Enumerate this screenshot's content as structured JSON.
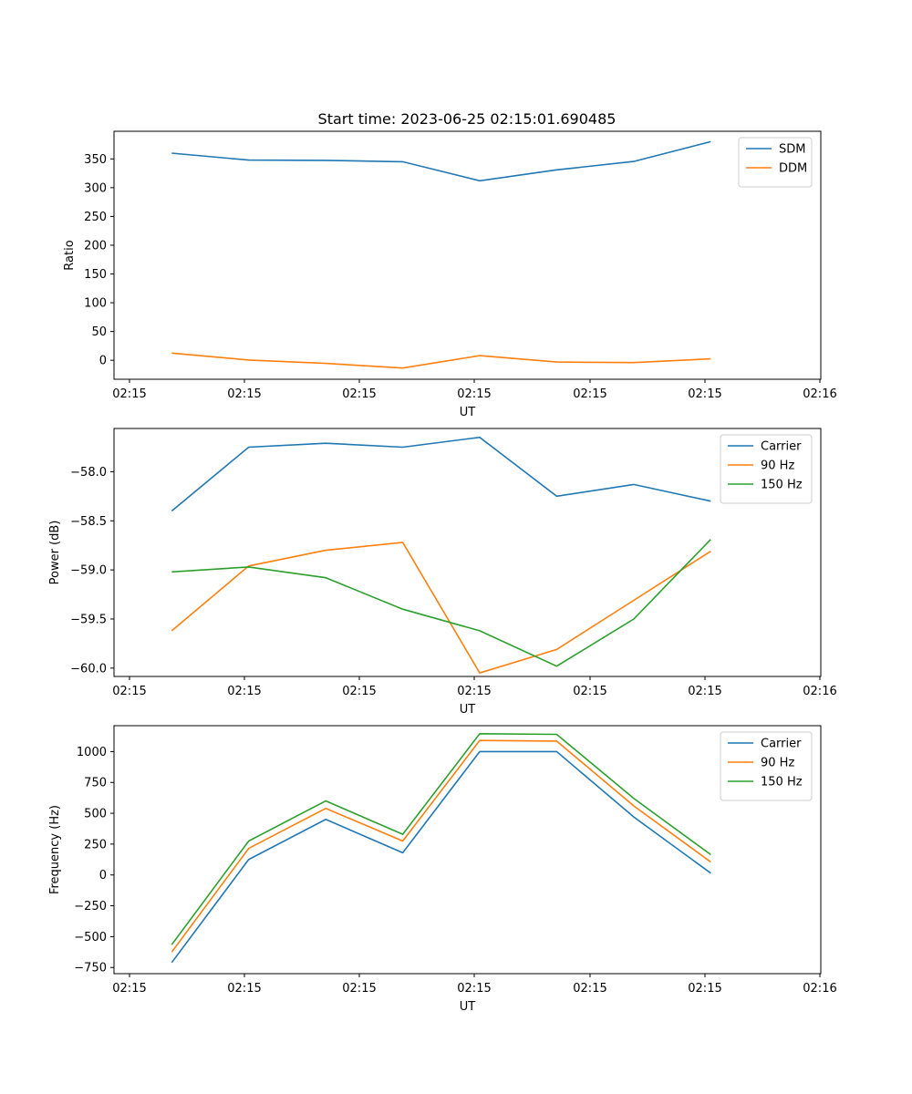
{
  "figure": {
    "title": "Start time: 2023-06-25 02:15:01.690485"
  },
  "colors": {
    "blue": "#1f77b4",
    "orange": "#ff7f0e",
    "green": "#2ca02c"
  },
  "chart_data": [
    {
      "type": "line",
      "title": "Start time: 2023-06-25 02:15:01.690485",
      "xlabel": "UT",
      "ylabel": "Ratio",
      "x": [
        "02:15:01.690485",
        "02:15:02.690485",
        "02:15:03.690485",
        "02:15:04.690485",
        "02:15:05.690485",
        "02:15:06.690485",
        "02:15:07.690485",
        "02:15:08.690485"
      ],
      "x_tick_labels": [
        "02:15",
        "02:15",
        "02:15",
        "02:15",
        "02:15",
        "02:15",
        "02:16"
      ],
      "ylim": [
        -33,
        398
      ],
      "y_ticks": [
        0,
        50,
        100,
        150,
        200,
        250,
        300,
        350
      ],
      "legend": "top-right",
      "grid": false,
      "series": [
        {
          "name": "SDM",
          "color": "#1f77b4",
          "values": [
            360,
            348,
            347.5,
            345,
            312,
            331,
            345.5,
            380
          ]
        },
        {
          "name": "DDM",
          "color": "#ff7f0e",
          "values": [
            12.5,
            0.5,
            -5.5,
            -13.5,
            8,
            -3,
            -4,
            2.5
          ]
        }
      ]
    },
    {
      "type": "line",
      "title": "",
      "xlabel": "UT",
      "ylabel": "Power (dB)",
      "x": [
        "02:15:01.690485",
        "02:15:02.690485",
        "02:15:03.690485",
        "02:15:04.690485",
        "02:15:05.690485",
        "02:15:06.690485",
        "02:15:07.690485",
        "02:15:08.690485"
      ],
      "x_tick_labels": [
        "02:15",
        "02:15",
        "02:15",
        "02:15",
        "02:15",
        "02:15",
        "02:16"
      ],
      "ylim": [
        -60.085,
        -57.56
      ],
      "y_ticks": [
        -58.0,
        -58.5,
        -59.0,
        -59.5,
        -60.0
      ],
      "y_tick_labels": [
        "−58.0",
        "−58.5",
        "−59.0",
        "−59.5",
        "−60.0"
      ],
      "legend": "top-right",
      "grid": false,
      "series": [
        {
          "name": "Carrier",
          "color": "#1f77b4",
          "values": [
            -58.4,
            -57.75,
            -57.71,
            -57.75,
            -57.65,
            -58.25,
            -58.13,
            -58.3
          ]
        },
        {
          "name": "90 Hz",
          "color": "#ff7f0e",
          "values": [
            -59.62,
            -58.96,
            -58.8,
            -58.72,
            -60.05,
            -59.81,
            -59.31,
            -58.81
          ]
        },
        {
          "name": "150 Hz",
          "color": "#2ca02c",
          "values": [
            -59.02,
            -58.97,
            -59.08,
            -59.4,
            -59.62,
            -59.98,
            -59.5,
            -58.69
          ]
        }
      ]
    },
    {
      "type": "line",
      "title": "",
      "xlabel": "UT",
      "ylabel": "Frequency (Hz)",
      "x": [
        "02:15:01.690485",
        "02:15:02.690485",
        "02:15:03.690485",
        "02:15:04.690485",
        "02:15:05.690485",
        "02:15:06.690485",
        "02:15:07.690485",
        "02:15:08.690485"
      ],
      "x_tick_labels": [
        "02:15",
        "02:15",
        "02:15",
        "02:15",
        "02:15",
        "02:15",
        "02:16"
      ],
      "ylim": [
        -800,
        1210
      ],
      "y_ticks": [
        -750,
        -500,
        -250,
        0,
        250,
        500,
        750,
        1000
      ],
      "y_tick_labels": [
        "−750",
        "−500",
        "−250",
        "0",
        "250",
        "500",
        "750",
        "1000"
      ],
      "legend": "top-right",
      "grid": false,
      "series": [
        {
          "name": "Carrier",
          "color": "#1f77b4",
          "values": [
            -710,
            125,
            450,
            180,
            1000,
            1000,
            470,
            15
          ]
        },
        {
          "name": "90 Hz",
          "color": "#ff7f0e",
          "values": [
            -625,
            215,
            540,
            275,
            1090,
            1085,
            560,
            105
          ]
        },
        {
          "name": "150 Hz",
          "color": "#2ca02c",
          "values": [
            -565,
            275,
            600,
            330,
            1145,
            1140,
            620,
            165
          ]
        }
      ]
    }
  ]
}
